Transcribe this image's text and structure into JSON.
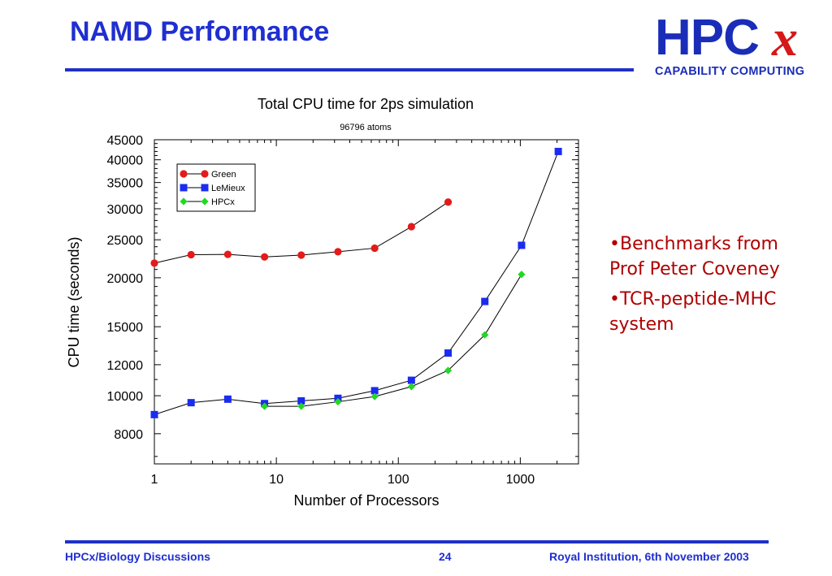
{
  "slide": {
    "title": "NAMD Performance"
  },
  "logo": {
    "letters": "HPC",
    "x_glyph": "x",
    "tagline": "CAPABILITY COMPUTING"
  },
  "chart_data": {
    "type": "line",
    "title": "Total CPU time for 2ps simulation",
    "subtitle": "96796 atoms",
    "xlabel": "Number of Processors",
    "ylabel": "CPU time (seconds)",
    "xscale": "log",
    "yscale": "log",
    "xlim": [
      1,
      3000
    ],
    "ylim": [
      6700,
      45000
    ],
    "xticks": [
      1,
      10,
      100,
      1000
    ],
    "xtick_labels": [
      "1",
      "10",
      "100",
      "1000"
    ],
    "yticks": [
      8000,
      10000,
      12000,
      15000,
      20000,
      25000,
      30000,
      35000,
      40000,
      45000
    ],
    "ytick_labels": [
      "8000",
      "10000",
      "12000",
      "15000",
      "20000",
      "25000",
      "30000",
      "35000",
      "40000",
      "45000"
    ],
    "legend_position": "top-left",
    "grid": false,
    "series": [
      {
        "name": "Green",
        "color": "#e51a1a",
        "marker": "circle",
        "points": [
          [
            1,
            21800
          ],
          [
            2,
            22900
          ],
          [
            4,
            22950
          ],
          [
            8,
            22600
          ],
          [
            16,
            22850
          ],
          [
            32,
            23300
          ],
          [
            64,
            23800
          ],
          [
            128,
            27000
          ],
          [
            256,
            31200
          ]
        ]
      },
      {
        "name": "LeMieux",
        "color": "#1a2cf0",
        "marker": "square",
        "points": [
          [
            1,
            8950
          ],
          [
            2,
            9600
          ],
          [
            4,
            9800
          ],
          [
            8,
            9550
          ],
          [
            16,
            9700
          ],
          [
            32,
            9850
          ],
          [
            64,
            10300
          ],
          [
            128,
            10950
          ],
          [
            256,
            12850
          ],
          [
            512,
            17400
          ],
          [
            1024,
            24200
          ],
          [
            2048,
            42000
          ]
        ]
      },
      {
        "name": "HPCx",
        "color": "#22d822",
        "marker": "diamond",
        "points": [
          [
            8,
            9400
          ],
          [
            16,
            9400
          ],
          [
            32,
            9650
          ],
          [
            64,
            9950
          ],
          [
            128,
            10550
          ],
          [
            256,
            11600
          ],
          [
            512,
            14300
          ],
          [
            1024,
            20400
          ]
        ]
      }
    ]
  },
  "bullets": [
    "•Benchmarks from Prof Peter Coveney",
    "•TCR-peptide-MHC system"
  ],
  "footer": {
    "left": "HPCx/Biology Discussions",
    "center": "24",
    "right": "Royal Institution, 6th November 2003"
  }
}
